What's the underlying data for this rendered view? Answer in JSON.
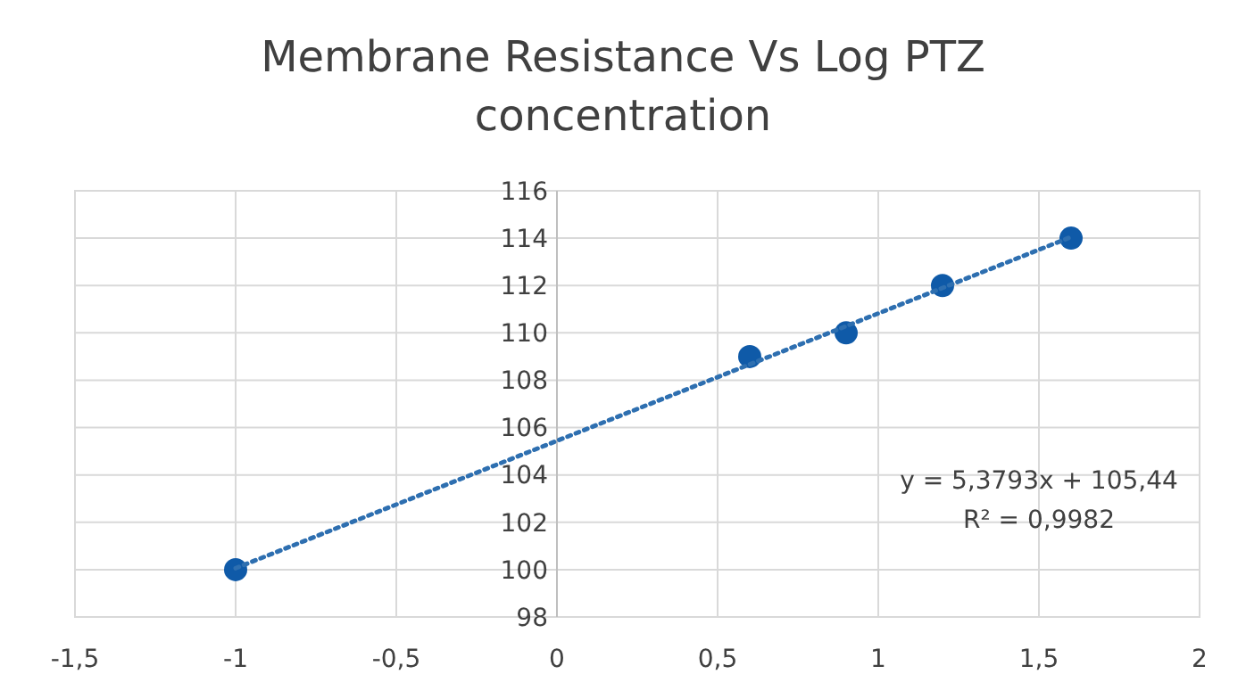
{
  "chart_data": {
    "type": "scatter",
    "title": "Membrane Resistance Vs Log PTZ concentration",
    "xlim": [
      -1.5,
      2
    ],
    "xticks": [
      {
        "value": -1.5,
        "label": "-1,5"
      },
      -1,
      {
        "value": -0.5,
        "label": "-0,5"
      },
      0,
      {
        "value": 0.5,
        "label": "0,5"
      },
      1,
      {
        "value": 1.5,
        "label": "1,5"
      },
      2
    ],
    "ylim": [
      98,
      116
    ],
    "yticks": [
      98,
      100,
      102,
      104,
      106,
      108,
      110,
      112,
      114,
      116
    ],
    "grid": true,
    "marker": "circle",
    "series": [
      {
        "color": "#0f5aa8",
        "x": [
          -1,
          0.6,
          0.9,
          1.2,
          1.6
        ],
        "values": [
          100,
          109,
          110,
          112,
          114
        ]
      },
      {
        "type": "line",
        "color": "#2e6fb0",
        "line_style": "dotted",
        "marker": "none",
        "x": [
          -1,
          1.6
        ],
        "values": [
          100.06,
          114.05
        ]
      }
    ],
    "annotations": [
      "y = 5,3793x + 105,44",
      "R² = 0,9982"
    ]
  }
}
